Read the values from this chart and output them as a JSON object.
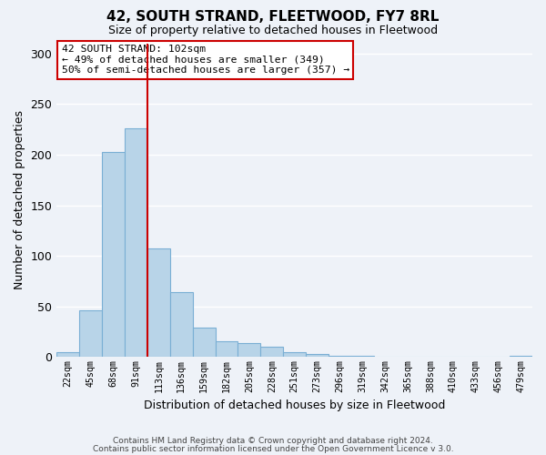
{
  "title": "42, SOUTH STRAND, FLEETWOOD, FY7 8RL",
  "subtitle": "Size of property relative to detached houses in Fleetwood",
  "xlabel": "Distribution of detached houses by size in Fleetwood",
  "ylabel": "Number of detached properties",
  "bar_color": "#b8d4e8",
  "bar_edge_color": "#7aafd4",
  "background_color": "#eef2f8",
  "grid_color": "#ffffff",
  "bin_labels": [
    "22sqm",
    "45sqm",
    "68sqm",
    "91sqm",
    "113sqm",
    "136sqm",
    "159sqm",
    "182sqm",
    "205sqm",
    "228sqm",
    "251sqm",
    "273sqm",
    "296sqm",
    "319sqm",
    "342sqm",
    "365sqm",
    "388sqm",
    "410sqm",
    "433sqm",
    "456sqm",
    "479sqm"
  ],
  "bar_heights": [
    5,
    46,
    203,
    226,
    107,
    64,
    29,
    16,
    14,
    10,
    5,
    3,
    1,
    1,
    0,
    0,
    0,
    0,
    0,
    0,
    1
  ],
  "ylim": [
    0,
    310
  ],
  "yticks": [
    0,
    50,
    100,
    150,
    200,
    250,
    300
  ],
  "red_line_x": 4.0,
  "annotation_title": "42 SOUTH STRAND: 102sqm",
  "annotation_line1": "← 49% of detached houses are smaller (349)",
  "annotation_line2": "50% of semi-detached houses are larger (357) →",
  "annotation_box_color": "#ffffff",
  "annotation_edge_color": "#cc0000",
  "footer_line1": "Contains HM Land Registry data © Crown copyright and database right 2024.",
  "footer_line2": "Contains public sector information licensed under the Open Government Licence v 3.0."
}
